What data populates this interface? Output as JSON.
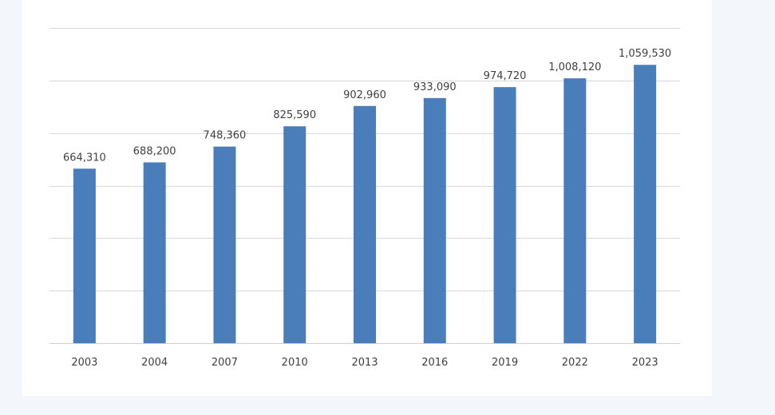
{
  "chart_data": {
    "type": "bar",
    "categories": [
      "2003",
      "2004",
      "2007",
      "2010",
      "2013",
      "2016",
      "2019",
      "2022",
      "2023"
    ],
    "values": [
      664310,
      688200,
      748360,
      825590,
      902960,
      933090,
      974720,
      1008120,
      1059530
    ],
    "data_labels": [
      "664,310",
      "688,200",
      "748,360",
      "825,590",
      "902,960",
      "933,090",
      "974,720",
      "1,008,120",
      "1,059,530"
    ],
    "ylim": [
      0,
      1200000
    ],
    "grid": true,
    "legend": "none",
    "colors": {
      "bar": "#4a7ebb",
      "grid": "#d9d9d9",
      "text": "#404040"
    }
  }
}
